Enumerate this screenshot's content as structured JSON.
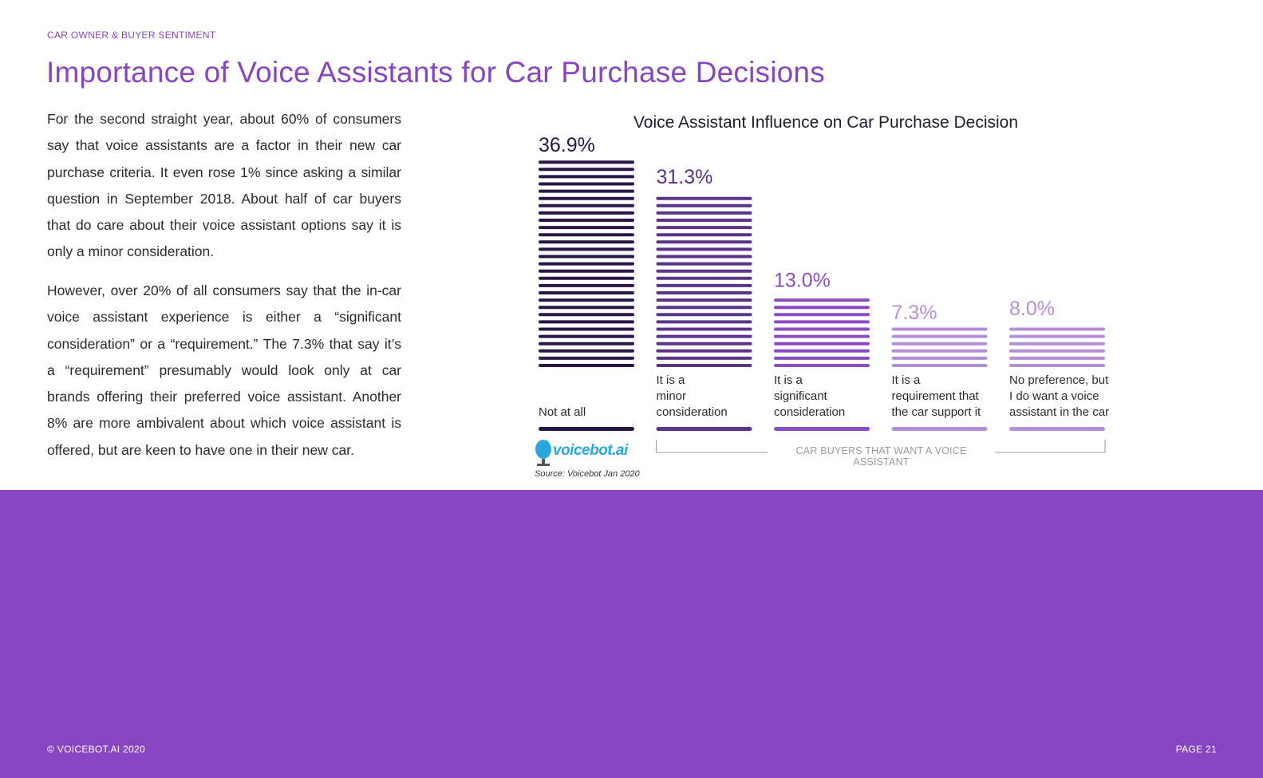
{
  "header": {
    "section_label": "CAR OWNER & BUYER SENTIMENT",
    "title": "Importance of Voice Assistants for Car Purchase Decisions"
  },
  "body": {
    "paragraph_1": "For the second straight year, about 60% of consumers say that voice assistants are a factor in their new car purchase criteria. It even rose 1% since asking a similar question in September 2018. About half of car buyers that do care about their voice assistant options say it is only a minor consideration.",
    "paragraph_2": "However, over 20% of all consumers say that the in-car voice assistant experience is either a “significant consideration” or a “requirement.” The 7.3% that say it’s a “requirement” presumably would look only at car brands offering their preferred voice assistant. Another 8% are more ambivalent about which voice assistant is offered, but are keen to have one in their new car."
  },
  "chart_data": {
    "type": "bar",
    "title": "Voice Assistant Influence on Car Purchase Decision",
    "categories": [
      "Not at all",
      "It is a minor consideration",
      "It is a significant consideration",
      "It is a requirement that the car support it",
      "No preference, but I do want a voice assistant in the car"
    ],
    "category_lines": [
      [
        "Not at all"
      ],
      [
        "It is a",
        "minor",
        "consideration"
      ],
      [
        "It is a",
        "significant",
        "consideration"
      ],
      [
        "It is a",
        "requirement that",
        "the car support it"
      ],
      [
        "No preference, but",
        "I do want a voice",
        "assistant in the car"
      ]
    ],
    "values": [
      36.9,
      31.3,
      13.0,
      7.3,
      8.0
    ],
    "value_labels": [
      "36.9%",
      "31.3%",
      "13.0%",
      "7.3%",
      "8.0%"
    ],
    "colors": [
      "#2b1745",
      "#5b3388",
      "#8a4cc4",
      "#b48fd6",
      "#b48fd6"
    ],
    "unit": "%",
    "ylim": [
      0,
      36.9
    ],
    "grid": false,
    "bracket_label": "CAR BUYERS THAT WANT A VOICE ASSISTANT",
    "bracket_range": [
      "It is a minor consideration",
      "No preference, but I do want a voice assistant in the car"
    ]
  },
  "source": {
    "logo_text": "voicebot.ai",
    "text": "Source: Voicebot Jan 2020"
  },
  "footer": {
    "copyright": "© VOICEBOT.AI 2020",
    "page": "PAGE 21"
  },
  "colors": {
    "accent": "#8845c2",
    "logo": "#2aa6df"
  }
}
